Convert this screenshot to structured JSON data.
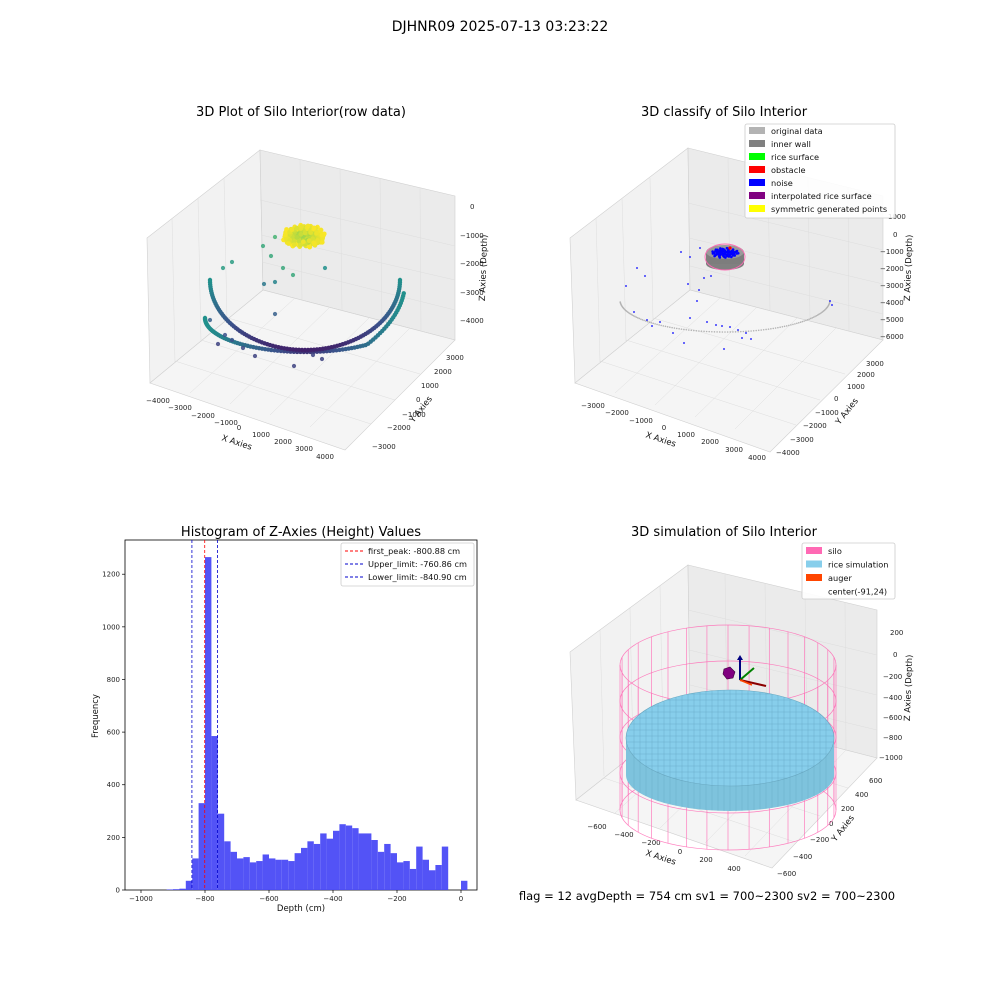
{
  "figure": {
    "suptitle": "DJHNR09 2025-07-13 03:23:22",
    "footer": "flag = 12   avgDepth = 754 cm   sv1 = 700~2300   sv2 = 700~2300"
  },
  "panels": {
    "raw": {
      "title": "3D Plot of Silo Interior(row data)",
      "xlabel": "X Axies",
      "ylabel": "Y Axies",
      "zlabel": "Z Axies (Depth)",
      "xticks": [
        "−4000",
        "−3000",
        "−2000",
        "−1000",
        "0",
        "1000",
        "2000",
        "3000",
        "4000"
      ],
      "yticks": [
        "−3000",
        "−2000",
        "−1000",
        "0",
        "1000",
        "2000",
        "3000"
      ],
      "zticks": [
        "0",
        "−1000",
        "−2000",
        "−3000",
        "−4000"
      ]
    },
    "classify": {
      "title": "3D classify of Silo Interior",
      "xlabel": "X Axies",
      "ylabel": "Y Axies",
      "zlabel": "Z Axies (Depth)",
      "xticks": [
        "−3000",
        "−2000",
        "−1000",
        "0",
        "1000",
        "2000",
        "3000",
        "4000"
      ],
      "yticks": [
        "−4000",
        "−3000",
        "−2000",
        "−1000",
        "0",
        "1000",
        "2000",
        "3000"
      ],
      "zticks": [
        "1000",
        "0",
        "−1000",
        "−2000",
        "−3000",
        "−4000",
        "−5000",
        "−6000"
      ],
      "legend": [
        {
          "label": "original data",
          "color": "#b3b3b3"
        },
        {
          "label": "inner wall",
          "color": "#808080"
        },
        {
          "label": "rice surface",
          "color": "#00ff00"
        },
        {
          "label": "obstacle",
          "color": "#ff0000"
        },
        {
          "label": "noise",
          "color": "#0000ff"
        },
        {
          "label": "interpolated rice surface",
          "color": "#800080"
        },
        {
          "label": "symmetric generated points",
          "color": "#ffff00"
        }
      ]
    },
    "simulation": {
      "title": "3D simulation of Silo Interior",
      "xlabel": "X Axies",
      "ylabel": "Y Axies",
      "zlabel": "Z Axies (Depth)",
      "xticks": [
        "−600",
        "−400",
        "−200",
        "0",
        "200",
        "400"
      ],
      "yticks": [
        "−600",
        "−400",
        "−200",
        "0",
        "200",
        "400",
        "600"
      ],
      "zticks": [
        "200",
        "0",
        "−200",
        "−400",
        "−600",
        "−800",
        "−1000"
      ],
      "legend": [
        {
          "label": "silo",
          "color": "#ff69b4"
        },
        {
          "label": "rice simulation",
          "color": "#87ceeb"
        },
        {
          "label": "auger",
          "color": "#ff4500"
        },
        {
          "label": "center(-91,24)",
          "color": "none"
        }
      ]
    }
  },
  "chart_data": [
    {
      "type": "bar",
      "title": "Histogram of Z-Axies (Height) Values",
      "xlabel": "Depth (cm)",
      "ylabel": "Frequency",
      "xlim": [
        -1050,
        50
      ],
      "ylim": [
        0,
        1330
      ],
      "xticks": [
        -1000,
        -800,
        -600,
        -400,
        -200,
        0
      ],
      "yticks": [
        0,
        200,
        400,
        600,
        800,
        1000,
        1200
      ],
      "bin_width": 20,
      "bar_color": "#4a4af5",
      "bins_start": [
        -1000,
        -980,
        -960,
        -940,
        -920,
        -900,
        -880,
        -860,
        -840,
        -820,
        -800,
        -780,
        -760,
        -740,
        -720,
        -700,
        -680,
        -660,
        -640,
        -620,
        -600,
        -580,
        -560,
        -540,
        -520,
        -500,
        -480,
        -460,
        -440,
        -420,
        -400,
        -380,
        -360,
        -340,
        -320,
        -300,
        -280,
        -260,
        -240,
        -220,
        -200,
        -180,
        -160,
        -140,
        -120,
        -100,
        -80,
        -60,
        -40,
        -20,
        0
      ],
      "values": [
        0,
        0,
        0,
        0,
        2,
        3,
        5,
        35,
        120,
        330,
        1265,
        585,
        290,
        185,
        145,
        120,
        125,
        105,
        110,
        135,
        120,
        115,
        115,
        110,
        140,
        160,
        185,
        175,
        215,
        195,
        225,
        250,
        245,
        235,
        215,
        215,
        190,
        145,
        175,
        140,
        105,
        110,
        80,
        165,
        115,
        75,
        95,
        165,
        0,
        0,
        35
      ],
      "lines": [
        {
          "label": "first_peak: -800.88 cm",
          "x": -800.88,
          "color": "#ff0000",
          "style": "dashed"
        },
        {
          "label": "Upper_limit: -760.86 cm",
          "x": -760.86,
          "color": "#0000cc",
          "style": "dashed"
        },
        {
          "label": "Lower_limit: -840.90 cm",
          "x": -840.9,
          "color": "#0000cc",
          "style": "dashed"
        }
      ],
      "legend_position": "upper right"
    }
  ]
}
